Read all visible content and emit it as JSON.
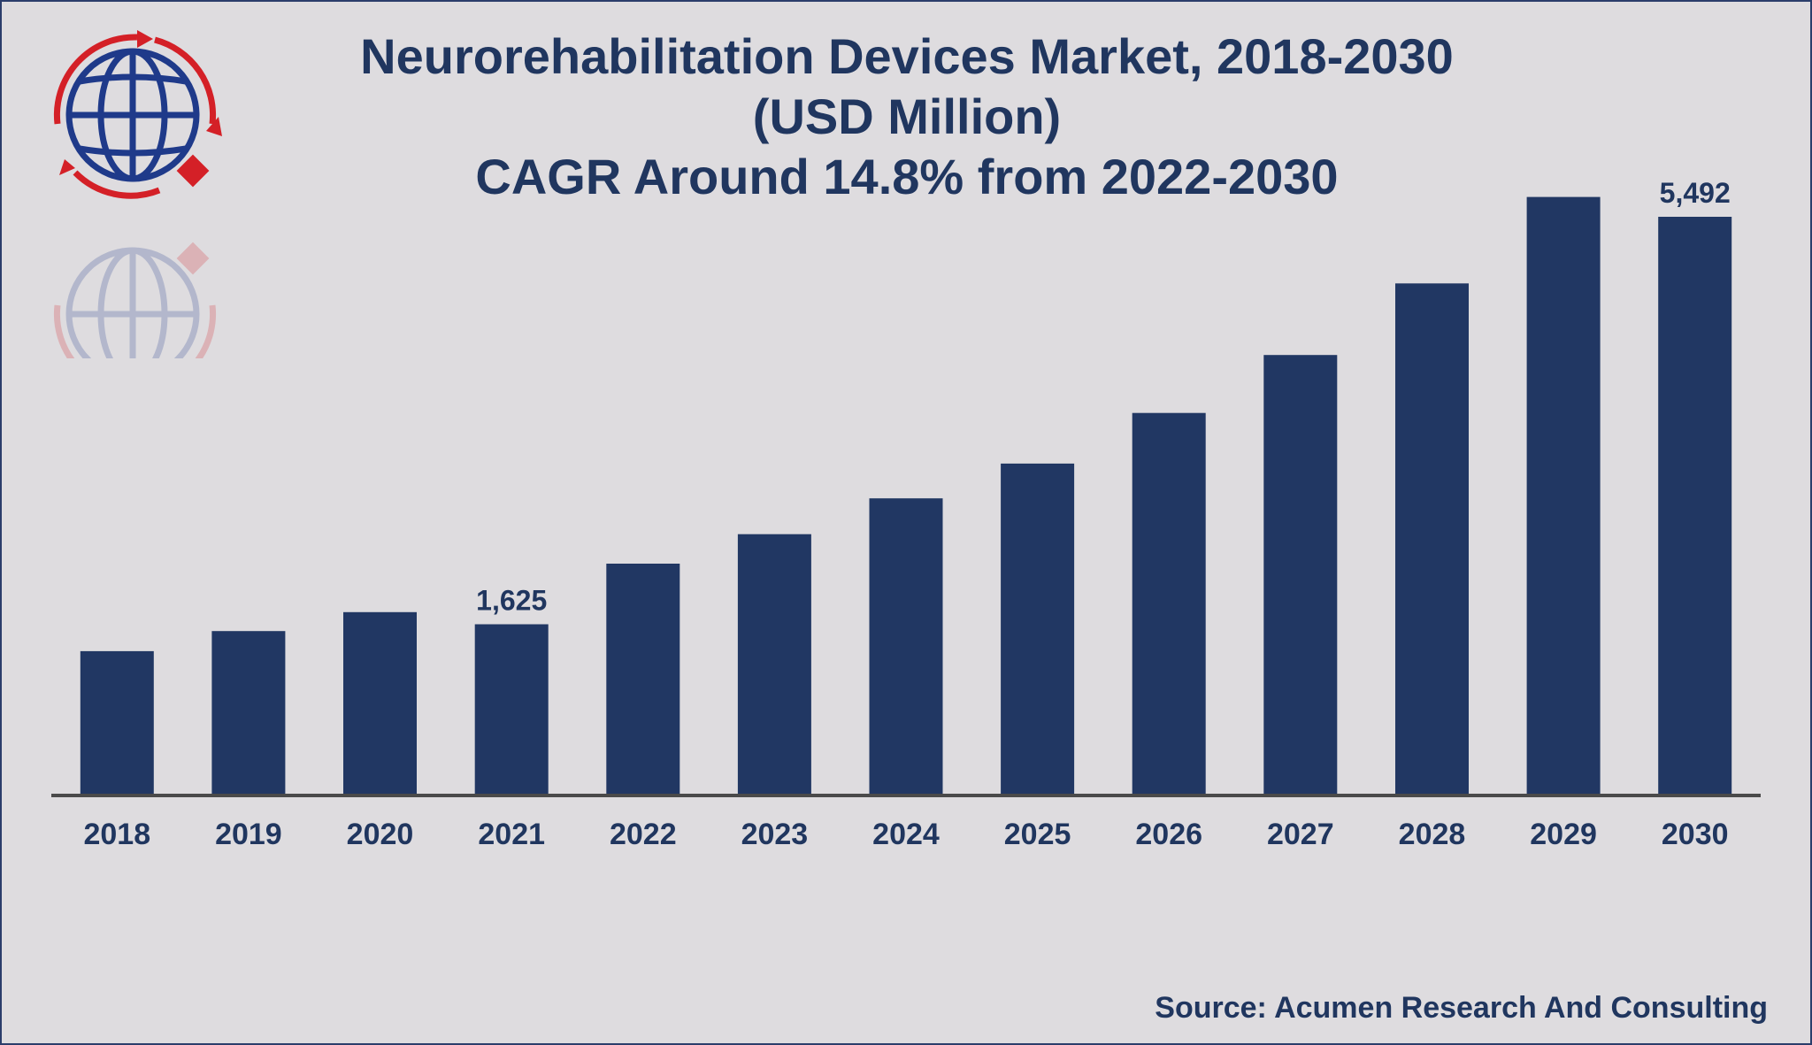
{
  "chart_data": {
    "type": "bar",
    "title": "Neurorehabilitation Devices Market, 2018-2030",
    "title_lines": [
      "Neurorehabilitation Devices Market, 2018-2030",
      "(USD Million)",
      "CAGR Around 14.8% from 2022-2030"
    ],
    "xlabel": "",
    "ylabel": "",
    "categories": [
      "2018",
      "2019",
      "2020",
      "2021",
      "2022",
      "2023",
      "2024",
      "2025",
      "2026",
      "2027",
      "2028",
      "2029",
      "2030"
    ],
    "values": [
      1370,
      1560,
      1740,
      1625,
      2200,
      2480,
      2820,
      3150,
      3630,
      4180,
      4860,
      5680,
      5492
    ],
    "data_labels": {
      "2021": "1,625",
      "2030": "5,492"
    },
    "ylim": [
      0,
      5492
    ],
    "grid": false,
    "legend": "none",
    "colors": {
      "bar": "#213763",
      "axis": "#4a4a4a",
      "text": "#20365f"
    }
  },
  "source_text": "Source: Acumen Research And Consulting",
  "logo": {
    "icon": "globe-arrows-logo",
    "colors": {
      "globe": "#1f3a8a",
      "arrows": "#d42027"
    }
  }
}
